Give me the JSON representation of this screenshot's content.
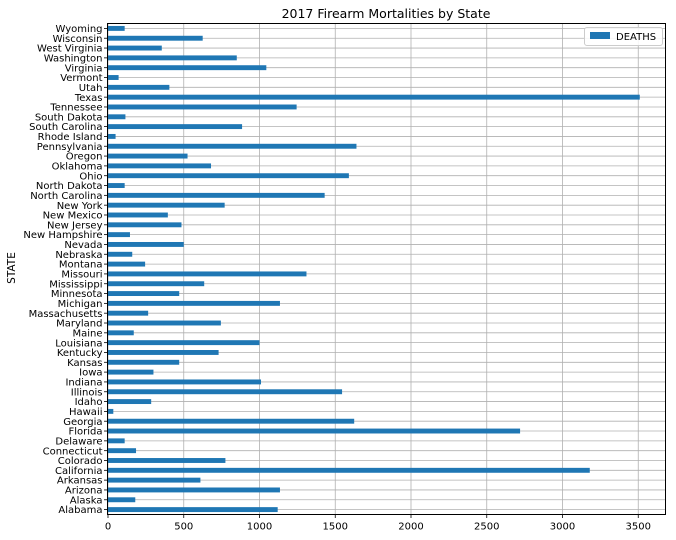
{
  "chart_data": {
    "type": "bar",
    "orientation": "horizontal",
    "title": "2017 Firearm Mortalities by State",
    "xlabel": "",
    "ylabel": "STATE",
    "xlim": [
      0,
      3700
    ],
    "xticks": [
      "0",
      "500",
      "1000",
      "1500",
      "2000",
      "2500",
      "3000",
      "3500"
    ],
    "grid": true,
    "legend_position": "top-right",
    "series": [
      {
        "name": "DEATHS",
        "color": "#1f77b4"
      }
    ],
    "categories": [
      "Alabama",
      "Alaska",
      "Arizona",
      "Arkansas",
      "California",
      "Colorado",
      "Connecticut",
      "Delaware",
      "Florida",
      "Georgia",
      "Hawaii",
      "Idaho",
      "Illinois",
      "Indiana",
      "Iowa",
      "Kansas",
      "Kentucky",
      "Louisiana",
      "Maine",
      "Maryland",
      "Massachusetts",
      "Michigan",
      "Minnesota",
      "Mississippi",
      "Missouri",
      "Montana",
      "Nebraska",
      "Nevada",
      "New Hampshire",
      "New Jersey",
      "New Mexico",
      "New York",
      "North Carolina",
      "North Dakota",
      "Ohio",
      "Oklahoma",
      "Oregon",
      "Pennsylvania",
      "Rhode Island",
      "South Carolina",
      "South Dakota",
      "Tennessee",
      "Texas",
      "Utah",
      "Vermont",
      "Virginia",
      "Washington",
      "West Virginia",
      "Wisconsin",
      "Wyoming"
    ],
    "values": [
      1120,
      180,
      1135,
      610,
      3180,
      775,
      185,
      110,
      2720,
      1625,
      35,
      285,
      1545,
      1010,
      300,
      470,
      730,
      1000,
      170,
      745,
      265,
      1135,
      470,
      635,
      1310,
      245,
      160,
      500,
      145,
      485,
      395,
      770,
      1430,
      110,
      1590,
      680,
      525,
      1640,
      50,
      885,
      115,
      1245,
      3510,
      405,
      70,
      1045,
      850,
      355,
      625,
      110
    ]
  }
}
